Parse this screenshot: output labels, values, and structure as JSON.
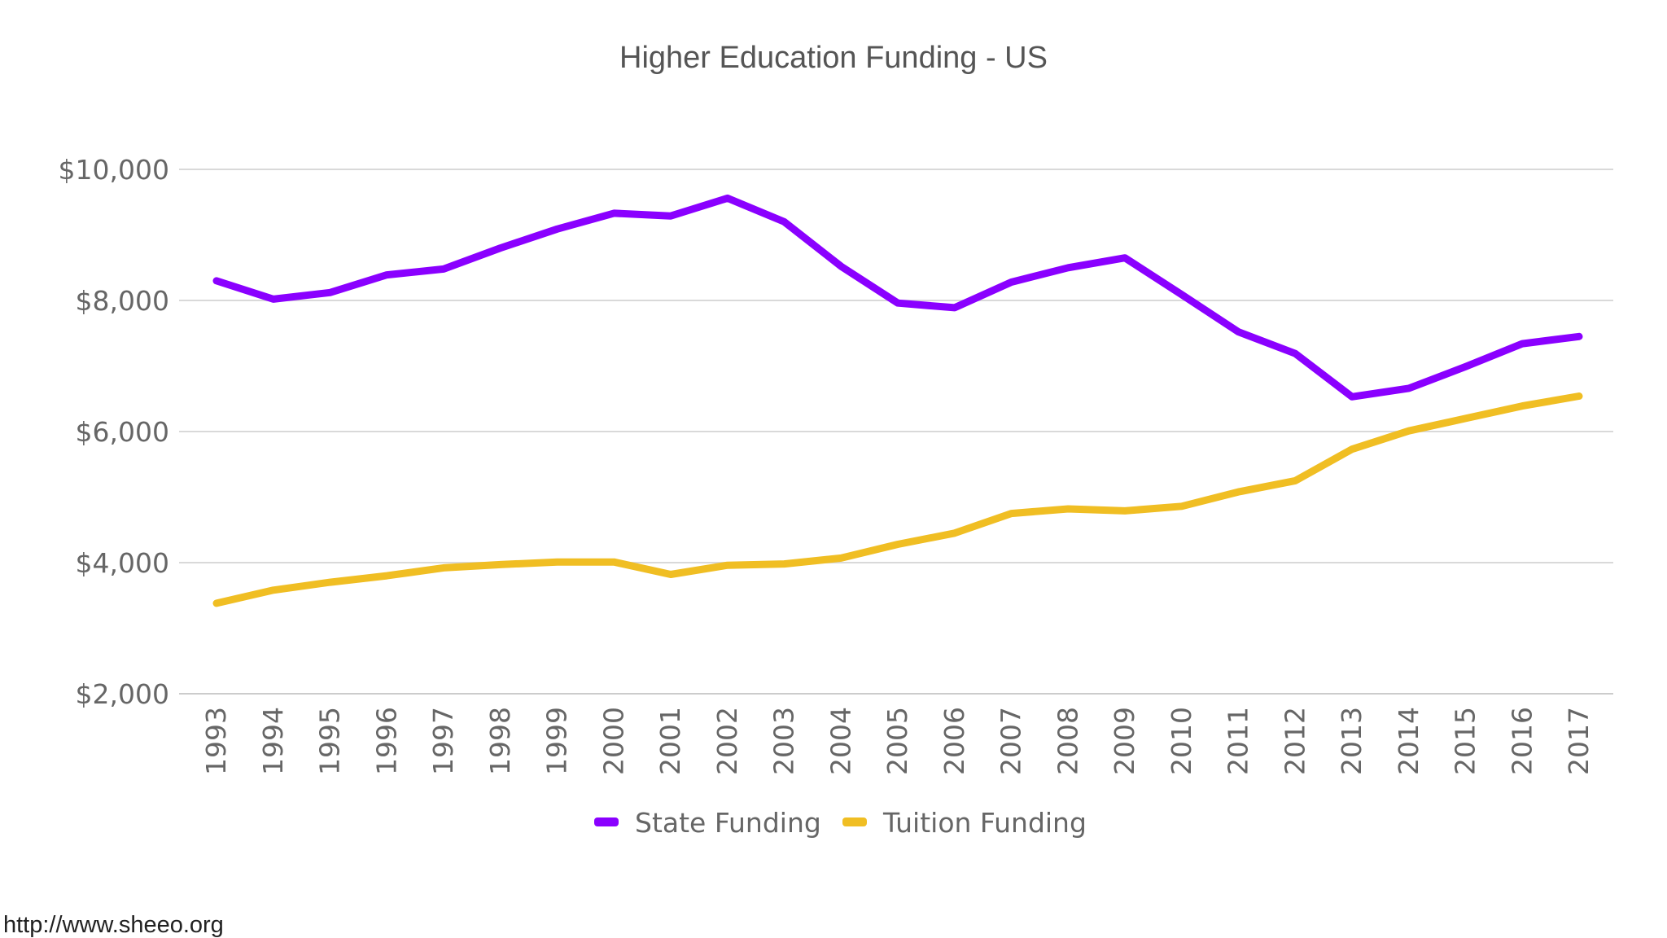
{
  "chart_data": {
    "type": "line",
    "title": "Higher Education Funding - US",
    "xlabel": "",
    "ylabel": "",
    "ylim": [
      2000,
      10000
    ],
    "y_ticks": [
      2000,
      4000,
      6000,
      8000,
      10000
    ],
    "y_tick_labels": [
      "$2,000",
      "$4,000",
      "$6,000",
      "$8,000",
      "$10,000"
    ],
    "grid": true,
    "legend_position": "bottom",
    "x": [
      "1993",
      "1994",
      "1995",
      "1996",
      "1997",
      "1998",
      "1999",
      "2000",
      "2001",
      "2002",
      "2003",
      "2004",
      "2005",
      "2006",
      "2007",
      "2008",
      "2009",
      "2010",
      "2011",
      "2012",
      "2013",
      "2014",
      "2015",
      "2016",
      "2017"
    ],
    "series": [
      {
        "name": "State Funding",
        "color": "#8a00ff",
        "values": [
          8300,
          8020,
          8120,
          8390,
          8480,
          8800,
          9090,
          9330,
          9290,
          9560,
          9200,
          8520,
          7960,
          7890,
          8280,
          8500,
          8650,
          8090,
          7520,
          7190,
          6530,
          6660,
          6990,
          7340,
          7450
        ]
      },
      {
        "name": "Tuition Funding",
        "color": "#f0be23",
        "values": [
          3380,
          3580,
          3700,
          3800,
          3920,
          3970,
          4010,
          4010,
          3820,
          3960,
          3980,
          4070,
          4280,
          4450,
          4750,
          4820,
          4790,
          4860,
          5080,
          5250,
          5730,
          6010,
          6200,
          6390,
          6540
        ]
      }
    ]
  },
  "footer": {
    "source": "http://www.sheeo.org"
  }
}
